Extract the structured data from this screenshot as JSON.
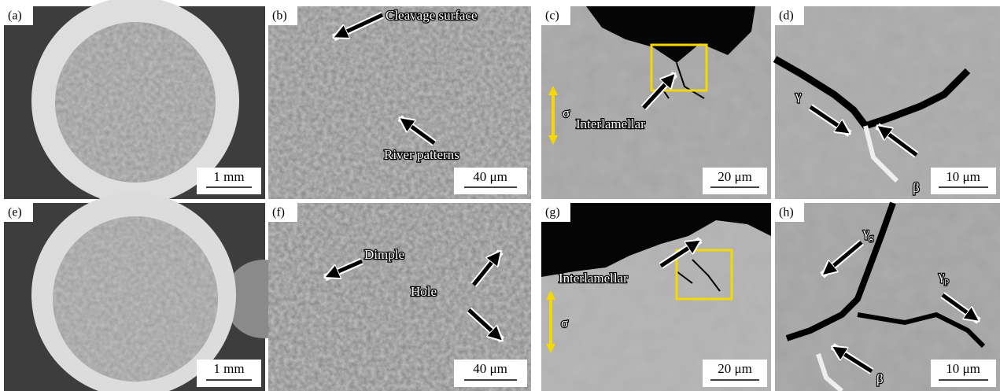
{
  "panels": [
    {
      "label": "(a)",
      "scale_bar": "1 mm"
    },
    {
      "label": "(b)",
      "scale_bar": "40 μm",
      "annotations": [
        "Cleavage surface",
        "River patterns"
      ]
    },
    {
      "label": "(c)",
      "scale_bar": "20 μm",
      "annotations": [
        "Interlamellar",
        "σ"
      ]
    },
    {
      "label": "(d)",
      "scale_bar": "10 μm",
      "annotations": [
        "γ",
        "β"
      ]
    },
    {
      "label": "(e)",
      "scale_bar": "1 mm"
    },
    {
      "label": "(f)",
      "scale_bar": "40 μm",
      "annotations": [
        "Dimple",
        "Hole"
      ]
    },
    {
      "label": "(g)",
      "scale_bar": "20 μm",
      "annotations": [
        "Interlamellar",
        "σ"
      ]
    },
    {
      "label": "(h)",
      "scale_bar": "10 μm",
      "annotations": [
        "β"
      ],
      "phases": [
        {
          "symbol": "γ",
          "subscript": "g"
        },
        {
          "symbol": "γ",
          "subscript": "p"
        }
      ]
    }
  ]
}
